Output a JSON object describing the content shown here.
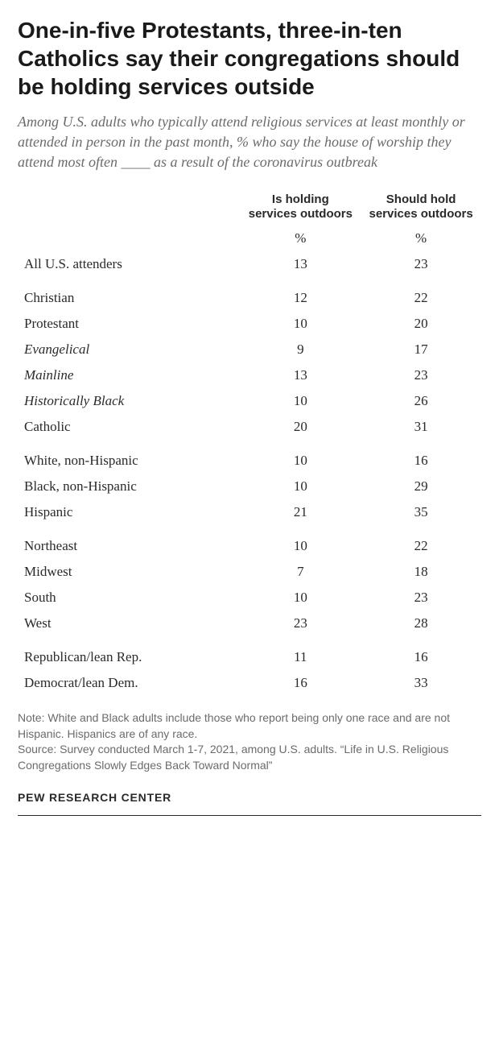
{
  "title": "One-in-five Protestants, three-in-ten Catholics say their congregations should be holding services outside",
  "subtitle": "Among U.S. adults who typically attend religious services at least monthly or attended in person in the past month, % who say the house of worship they attend most often ____ as a result of the coronavirus outbreak",
  "columns": {
    "col1": "Is holding services outdoors",
    "col2": "Should hold services outdoors",
    "unit": "%"
  },
  "groups": [
    {
      "rows": [
        {
          "label": "All U.S. attenders",
          "v1": "13",
          "v2": "23",
          "indent": 0
        }
      ]
    },
    {
      "rows": [
        {
          "label": "Christian",
          "v1": "12",
          "v2": "22",
          "indent": 0
        },
        {
          "label": "Protestant",
          "v1": "10",
          "v2": "20",
          "indent": 1
        },
        {
          "label": "Evangelical",
          "v1": "9",
          "v2": "17",
          "indent": 2
        },
        {
          "label": "Mainline",
          "v1": "13",
          "v2": "23",
          "indent": 2
        },
        {
          "label": "Historically Black",
          "v1": "10",
          "v2": "26",
          "indent": 2
        },
        {
          "label": "Catholic",
          "v1": "20",
          "v2": "31",
          "indent": 1
        }
      ]
    },
    {
      "rows": [
        {
          "label": "White, non-Hispanic",
          "v1": "10",
          "v2": "16",
          "indent": 0
        },
        {
          "label": "Black, non-Hispanic",
          "v1": "10",
          "v2": "29",
          "indent": 0
        },
        {
          "label": "Hispanic",
          "v1": "21",
          "v2": "35",
          "indent": 0
        }
      ]
    },
    {
      "rows": [
        {
          "label": "Northeast",
          "v1": "10",
          "v2": "22",
          "indent": 0
        },
        {
          "label": "Midwest",
          "v1": "7",
          "v2": "18",
          "indent": 0
        },
        {
          "label": "South",
          "v1": "10",
          "v2": "23",
          "indent": 0
        },
        {
          "label": "West",
          "v1": "23",
          "v2": "28",
          "indent": 0
        }
      ]
    },
    {
      "rows": [
        {
          "label": "Republican/lean Rep.",
          "v1": "11",
          "v2": "16",
          "indent": 0
        },
        {
          "label": "Democrat/lean Dem.",
          "v1": "16",
          "v2": "33",
          "indent": 0
        }
      ]
    }
  ],
  "notes": {
    "note": "Note: White and Black adults include those who report being only one race and are not Hispanic. Hispanics are of any race.",
    "source": "Source: Survey conducted March 1-7, 2021, among U.S. adults. “Life in U.S. Religious Congregations Slowly Edges Back Toward Normal”"
  },
  "logo": "PEW RESEARCH CENTER",
  "styling": {
    "type": "table",
    "title_fontsize": 28,
    "title_color": "#1a1a1a",
    "subtitle_fontsize": 18,
    "subtitle_color": "#6b6b6b",
    "body_fontsize": 17,
    "body_color": "#2a2a2a",
    "notes_fontsize": 14,
    "notes_color": "#6b6b6b",
    "background_color": "#ffffff",
    "column_widths_pct": [
      48,
      26,
      26
    ],
    "font_title": "Arial",
    "font_body": "Georgia"
  }
}
